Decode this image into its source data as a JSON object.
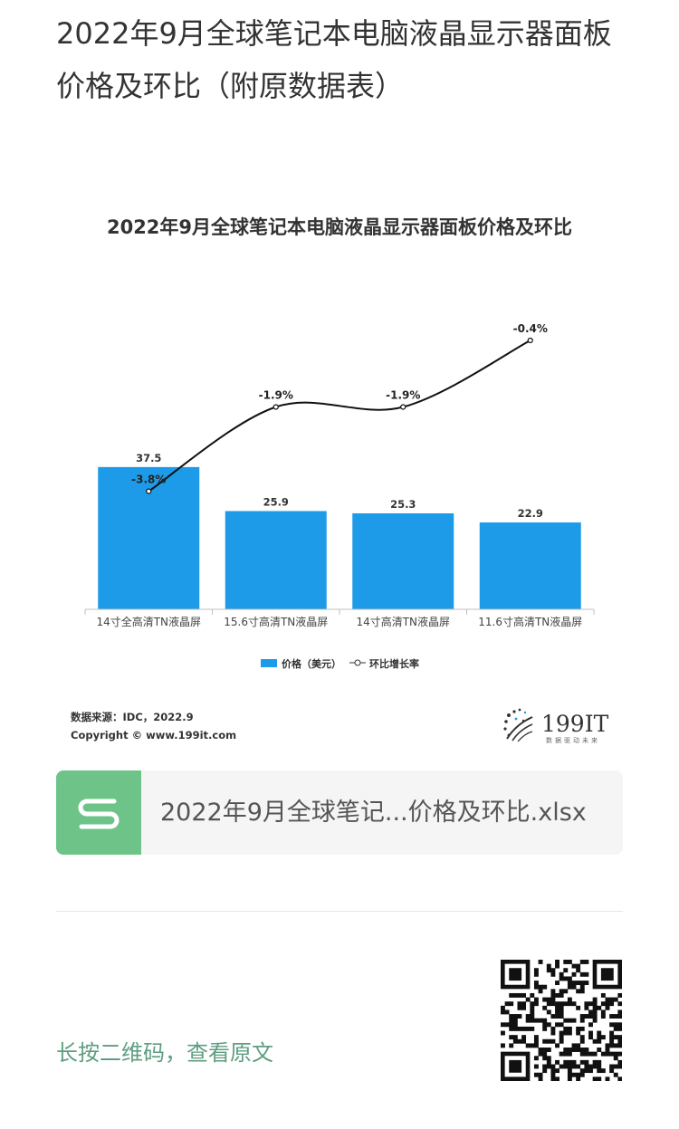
{
  "article": {
    "title": "2022年9月全球笔记本电脑液晶显示器面板价格及环比（附原数据表）"
  },
  "chart_data": {
    "type": "bar",
    "title": "2022年9月全球笔记本电脑液晶显示器面板价格及环比",
    "categories": [
      "14寸全高清TN液晶屏",
      "15.6寸高清TN液晶屏",
      "14寸高清TN液晶屏",
      "11.6寸高清TN液晶屏"
    ],
    "series": [
      {
        "name": "价格（美元）",
        "kind": "bar",
        "values": [
          37.5,
          25.9,
          25.3,
          22.9
        ],
        "color": "#1e9be8"
      },
      {
        "name": "环比增长率",
        "kind": "line",
        "values": [
          -3.8,
          -1.9,
          -1.9,
          -0.4
        ],
        "labels": [
          "-3.8%",
          "-1.9%",
          "-1.9%",
          "-0.4%"
        ],
        "color": "#111111"
      }
    ],
    "bar_ylim": [
      0,
      40
    ],
    "line_ylim": [
      -4,
      0
    ],
    "legend_position": "bottom",
    "grid": false,
    "source": "数据来源：IDC，2022.9",
    "copyright": "Copyright © www.199it.com",
    "brand": {
      "name": "199IT",
      "slogan": "数据驱动未来"
    }
  },
  "attachment": {
    "file_name": "2022年9月全球笔记...价格及环比.xlsx",
    "icon": "spreadsheet-s-icon",
    "icon_color": "#6ec488"
  },
  "footer": {
    "qr_hint": "长按二维码，查看原文",
    "qr_icon": "qr-code-icon"
  }
}
